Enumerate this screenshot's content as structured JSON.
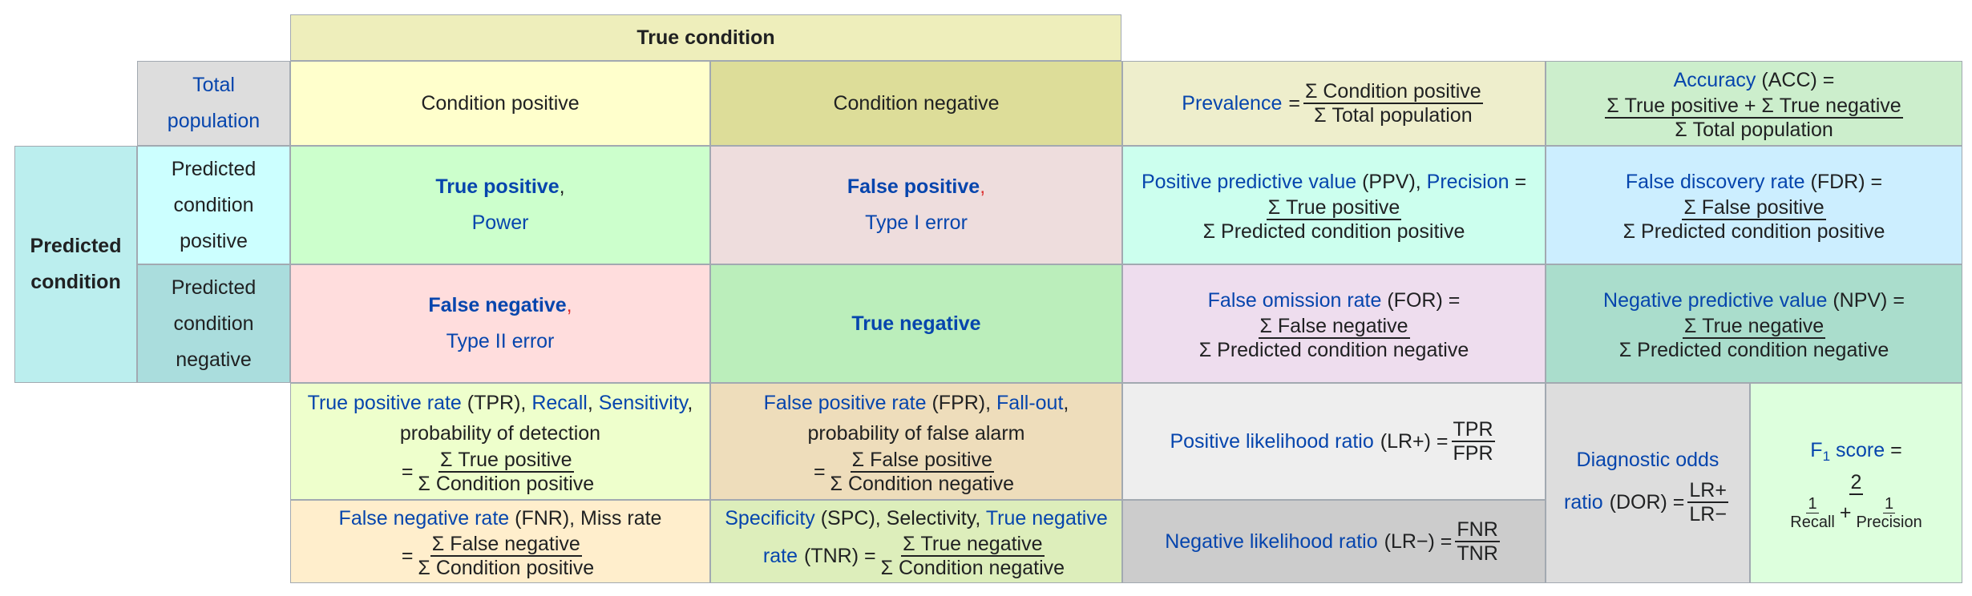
{
  "true_condition": "True condition",
  "total_population": [
    "Total",
    "population"
  ],
  "condition_positive": "Condition positive",
  "condition_negative": "Condition negative",
  "prevalence": {
    "label": "Prevalence",
    "eq": "=",
    "num": "Σ Condition positive",
    "den": "Σ Total population"
  },
  "accuracy": {
    "label": "Accuracy",
    "abbr": "(ACC) =",
    "num": "Σ True positive + Σ True negative",
    "den": "Σ Total population"
  },
  "predicted_condition": [
    "Predicted",
    "condition"
  ],
  "predicted_positive": [
    "Predicted",
    "condition",
    "positive"
  ],
  "predicted_negative": [
    "Predicted",
    "condition",
    "negative"
  ],
  "tp": {
    "title": "True positive",
    "comma": ",",
    "sub": "Power"
  },
  "fp": {
    "title": "False positive",
    "comma": ",",
    "sub": "Type I error"
  },
  "fn": {
    "title": "False negative",
    "comma": ",",
    "sub": "Type II error"
  },
  "tn": {
    "title": "True negative"
  },
  "ppv": {
    "label1": "Positive predictive value",
    "abbr": "(PPV),",
    "label2": "Precision",
    "eq": "=",
    "num": "Σ True positive",
    "den": "Σ Predicted condition positive"
  },
  "fdr": {
    "label": "False discovery rate",
    "abbr": "(FDR) =",
    "num": "Σ False positive",
    "den": "Σ Predicted condition positive"
  },
  "for": {
    "label": "False omission rate",
    "abbr": "(FOR) =",
    "num": "Σ False negative",
    "den": "Σ Predicted condition negative"
  },
  "npv": {
    "label": "Negative predictive value",
    "abbr": "(NPV) =",
    "num": "Σ True negative",
    "den": "Σ Predicted condition negative"
  },
  "tpr": {
    "label1": "True positive rate",
    "abbr": "(TPR),",
    "label2": "Recall",
    "comma": ",",
    "label3": "Sensitivity",
    "comma2": ",",
    "desc": "probability of detection",
    "eq": "=",
    "num": "Σ True positive",
    "den": "Σ Condition positive"
  },
  "fpr": {
    "label1": "False positive rate",
    "abbr": "(FPR),",
    "label2": "Fall-out",
    "comma": ",",
    "desc": "probability of false alarm",
    "eq": "=",
    "num": "Σ False positive",
    "den": "Σ Condition negative"
  },
  "fnr": {
    "label": "False negative rate",
    "abbr": "(FNR), Miss rate",
    "eq": "=",
    "num": "Σ False negative",
    "den": "Σ Condition positive"
  },
  "spc": {
    "label1": "Specificity",
    "abbr1": "(SPC), Selectivity,",
    "label2": "True negative",
    "label3": "rate",
    "abbr2": "(TNR) =",
    "num": "Σ True negative",
    "den": "Σ Condition negative"
  },
  "lr_pos": {
    "label": "Positive likelihood ratio",
    "abbr": "(LR+) =",
    "num": "TPR",
    "den": "FPR"
  },
  "lr_neg": {
    "label": "Negative likelihood ratio",
    "abbr": "(LR−) =",
    "num": "FNR",
    "den": "TNR"
  },
  "dor": {
    "label1": "Diagnostic odds",
    "label2": "ratio",
    "abbr": "(DOR) =",
    "num": "LR+",
    "den": "LR−"
  },
  "f1": {
    "label": "F",
    "sub": "1",
    "label_rest": " score",
    "eq": "=",
    "num": "2",
    "n1": "1",
    "d1": "Recall",
    "plus": "+",
    "n2": "1",
    "d2": "Precision"
  },
  "colors": {
    "true_condition": "#eeeebb",
    "total": "#dddddd",
    "cond_pos": "#ffffcc",
    "cond_neg": "#dddd99",
    "prevalence": "#eeeecc",
    "accuracy": "#cceecc",
    "pred": "#bbeeee",
    "pred_pos": "#ccffff",
    "pred_neg": "#aadddd",
    "tp": "#ccffcc",
    "fp": "#eedddd",
    "fn": "#ffdddd",
    "tn": "#bbeebb",
    "ppv": "#ccffee",
    "fdr": "#cceeff",
    "for": "#eeddee",
    "npv": "#aaddcc",
    "tpr": "#eeffcc",
    "fpr": "#eeddbb",
    "fnr": "#ffeecc",
    "spc": "#ddeebb",
    "lr_pos": "#eeeeee",
    "lr_neg": "#cccccc",
    "dor": "#dddddd",
    "f1": "#ddffdd"
  }
}
